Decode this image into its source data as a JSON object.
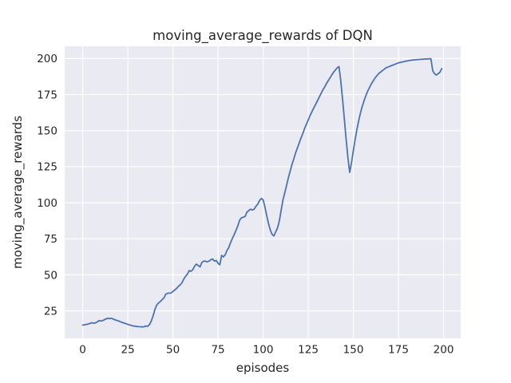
{
  "chart_data": {
    "type": "line",
    "title": "moving_average_rewards of DQN",
    "xlabel": "episodes",
    "ylabel": "moving_average_rewards",
    "grid": true,
    "legend_position": "none",
    "xticks": [
      0,
      25,
      50,
      75,
      100,
      125,
      150,
      175,
      200
    ],
    "yticks": [
      25,
      50,
      75,
      100,
      125,
      150,
      175,
      200
    ],
    "xlim": [
      -10,
      209.5
    ],
    "ylim": [
      6,
      208.5
    ],
    "x_start": 0,
    "x_step": 1,
    "colors": {
      "line": "#4C72B0",
      "plot_bg": "#EAEAF2",
      "grid": "#FFFFFF",
      "text": "#262626",
      "figure_bg": "#FFFFFF"
    },
    "series": [
      {
        "name": "moving_average_rewards",
        "values": [
          15.2,
          15.4,
          15.6,
          15.9,
          16.3,
          16.8,
          16.5,
          16.7,
          17.3,
          18.3,
          18.0,
          18.3,
          18.9,
          19.5,
          19.9,
          19.6,
          19.9,
          19.3,
          18.8,
          18.4,
          18.0,
          17.4,
          17.0,
          16.5,
          16.1,
          15.7,
          15.3,
          14.9,
          14.6,
          14.4,
          14.2,
          14.1,
          14.0,
          13.9,
          14.0,
          14.6,
          14.3,
          15.5,
          18.0,
          21.5,
          26.0,
          29.0,
          30.5,
          31.5,
          32.8,
          34.0,
          36.5,
          37.2,
          37.3,
          37.5,
          38.5,
          39.5,
          40.5,
          42.0,
          43.0,
          44.5,
          47.0,
          49.0,
          50.5,
          53.0,
          52.5,
          53.5,
          56.0,
          57.5,
          56.5,
          55.5,
          58.5,
          59.5,
          59.5,
          59.0,
          59.5,
          60.5,
          61.0,
          59.5,
          60.0,
          58.0,
          57.0,
          63.5,
          62.5,
          64.0,
          67.0,
          69.0,
          72.5,
          75.5,
          78.0,
          81.0,
          84.0,
          88.0,
          89.5,
          90.0,
          90.5,
          93.5,
          94.5,
          95.5,
          95.0,
          95.5,
          97.5,
          99.0,
          101.5,
          103.0,
          102.0,
          97.0,
          91.0,
          85.5,
          81.0,
          78.0,
          77.0,
          80.0,
          82.5,
          87.5,
          95.0,
          102.0,
          107.0,
          112.0,
          117.5,
          122.0,
          126.5,
          130.5,
          134.5,
          138.0,
          141.5,
          145.0,
          148.0,
          151.5,
          154.5,
          157.5,
          160.5,
          163.0,
          165.5,
          168.0,
          170.5,
          173.0,
          175.5,
          178.0,
          180.0,
          182.5,
          184.5,
          186.5,
          188.5,
          190.5,
          192.0,
          193.5,
          194.5,
          185.0,
          172.0,
          158.0,
          144.0,
          131.0,
          121.0,
          128.0,
          136.0,
          144.0,
          151.0,
          157.0,
          162.5,
          167.0,
          171.0,
          174.5,
          177.5,
          180.0,
          182.5,
          184.5,
          186.5,
          188.0,
          189.5,
          190.5,
          191.5,
          192.5,
          193.5,
          194.0,
          194.5,
          195.0,
          195.5,
          196.0,
          196.5,
          197.0,
          197.3,
          197.6,
          197.9,
          198.2,
          198.4,
          198.6,
          198.8,
          199.0,
          199.1,
          199.2,
          199.3,
          199.4,
          199.5,
          199.6,
          199.7,
          199.7,
          199.8,
          199.8,
          191.5,
          189.5,
          188.5,
          189.5,
          190.5,
          193.0
        ]
      }
    ]
  }
}
